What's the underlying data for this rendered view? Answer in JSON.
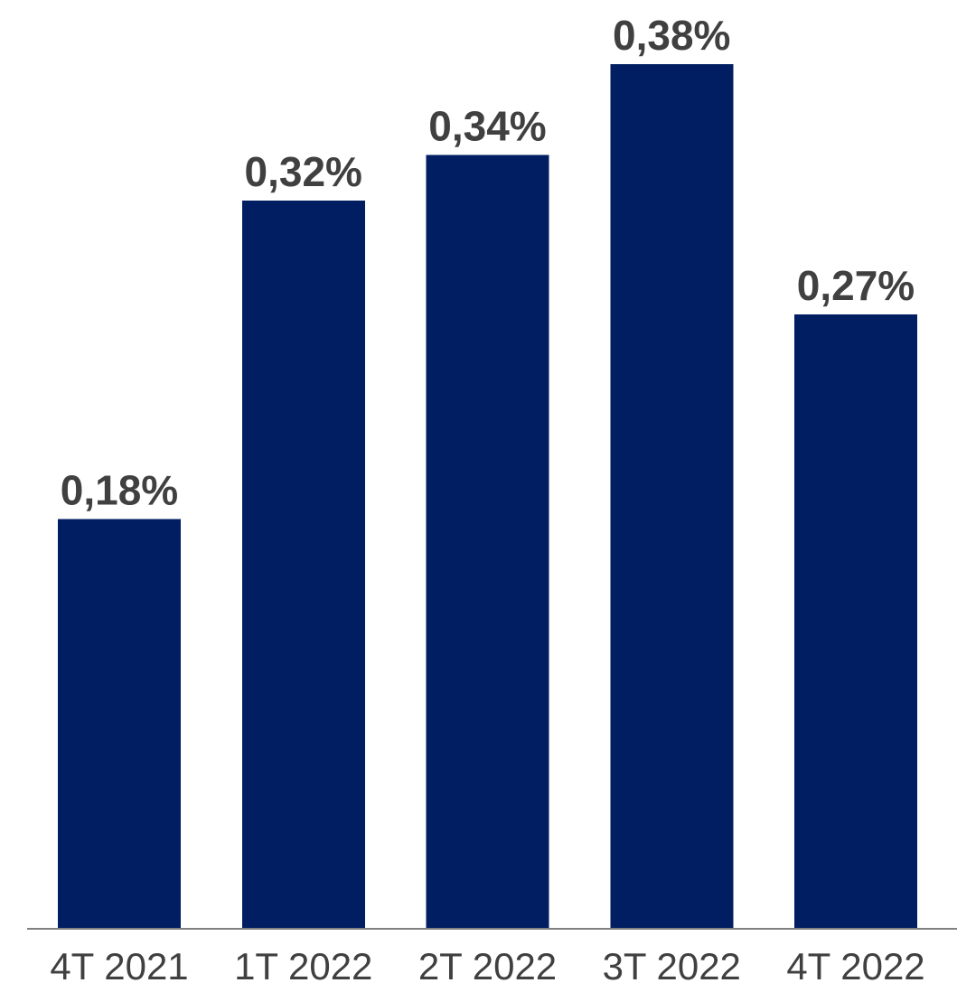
{
  "chart_data": {
    "type": "bar",
    "categories": [
      "4T 2021",
      "1T 2022",
      "2T 2022",
      "3T 2022",
      "4T 2022"
    ],
    "values": [
      0.18,
      0.32,
      0.34,
      0.38,
      0.27
    ],
    "data_labels": [
      "0,18%",
      "0,32%",
      "0,34%",
      "0,38%",
      "0,27%"
    ],
    "title": "",
    "xlabel": "",
    "ylabel": "",
    "ylim": [
      0,
      0.38
    ],
    "grid": false,
    "legend": "none",
    "colors": {
      "bar": "#001E61",
      "data_label": "#404040",
      "tick_label": "#404040",
      "axis": "#808080"
    }
  }
}
